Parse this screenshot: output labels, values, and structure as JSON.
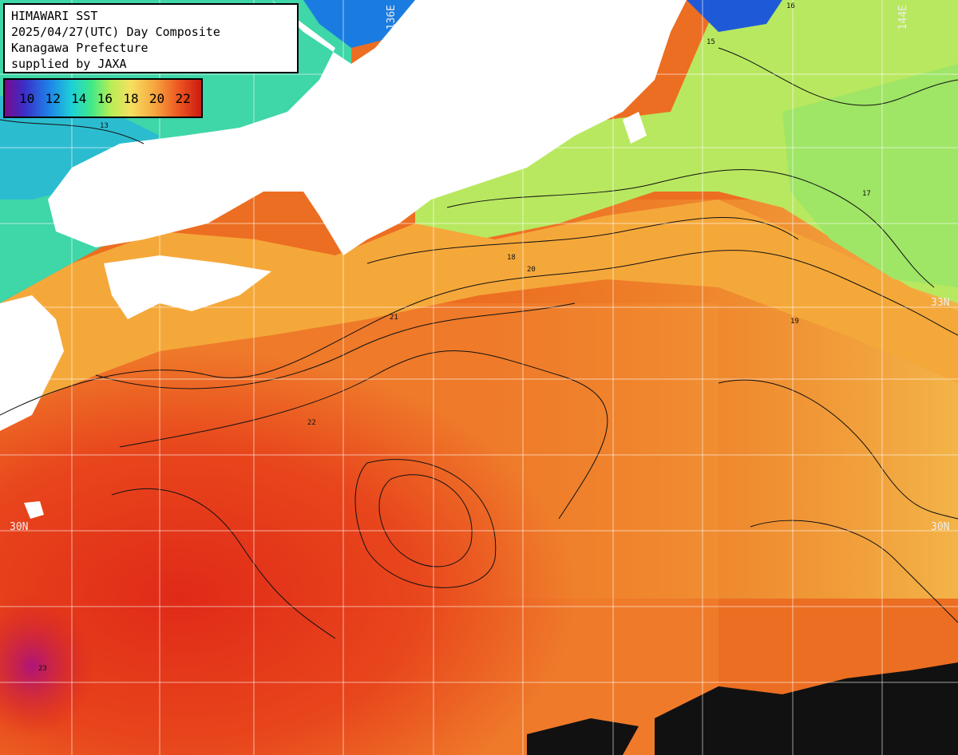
{
  "header": {
    "line1": "HIMAWARI SST",
    "line2": "2025/04/27(UTC) Day Composite",
    "line3": "Kanagawa Prefecture",
    "line4": "supplied by JAXA"
  },
  "legend": {
    "ticks": [
      "10",
      "12",
      "14",
      "16",
      "18",
      "20",
      "22"
    ],
    "colors": [
      "#7a0a8e",
      "#3a2ec8",
      "#1f7fe8",
      "#1ed0d8",
      "#3fe88a",
      "#b8ee55",
      "#f5e060",
      "#f7a840",
      "#ee5a22",
      "#cc1a10"
    ]
  },
  "grid": {
    "lon_labels": [
      "136E",
      "144E"
    ],
    "lat_labels": [
      "33N",
      "30N",
      "30N"
    ]
  },
  "contour_labels": [
    "13",
    "15",
    "16",
    "17",
    "18",
    "19",
    "20",
    "21",
    "22",
    "23"
  ]
}
